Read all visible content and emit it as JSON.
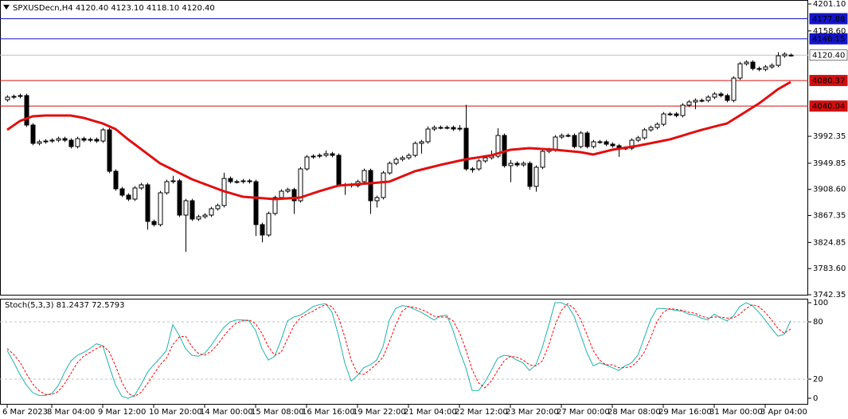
{
  "chart_data": [
    {
      "type": "candlestick",
      "title": "SPXUSDecn,H4  4120.40 4123.10 4118.10 4120.40",
      "categories": [
        "6 Mar 2023",
        null,
        null,
        null,
        null,
        null,
        null,
        "8 Mar 04:00",
        null,
        null,
        null,
        null,
        null,
        null,
        null,
        "9 Mar 12:00",
        null,
        null,
        null,
        null,
        null,
        null,
        null,
        "10 Mar 20:00",
        null,
        null,
        null,
        null,
        null,
        null,
        null,
        "14 Mar 00:00",
        null,
        null,
        null,
        null,
        null,
        null,
        null,
        "15 Mar 08:00",
        null,
        null,
        null,
        null,
        null,
        null,
        null,
        "16 Mar 16:00",
        null,
        null,
        null,
        null,
        null,
        null,
        null,
        "19 Mar 22:00",
        null,
        null,
        null,
        null,
        null,
        null,
        null,
        "21 Mar 04:00",
        null,
        null,
        null,
        null,
        null,
        null,
        null,
        "22 Mar 12:00",
        null,
        null,
        null,
        null,
        null,
        null,
        null,
        "23 Mar 20:00",
        null,
        null,
        null,
        null,
        null,
        null,
        null,
        "27 Mar 00:00",
        null,
        null,
        null,
        null,
        null,
        null,
        null,
        "28 Mar 08:00",
        null,
        null,
        null,
        null,
        null,
        null,
        null,
        "29 Mar 16:00",
        null,
        null,
        null,
        null,
        null,
        null,
        null,
        "31 Mar 00:00",
        null,
        null,
        null,
        null,
        null,
        null,
        null,
        "3 Apr 04:00",
        null,
        null,
        null,
        null
      ],
      "open": [
        4050.0,
        4054.1,
        4055.3,
        4056.6,
        4010.1,
        3981.2,
        3983.7,
        3984.9,
        3986.2,
        3988.7,
        3986.2,
        3976.1,
        3988.7,
        3986.2,
        3987.4,
        3984.9,
        4002.5,
        3937.2,
        3909.5,
        3899.5,
        3893.2,
        3910.8,
        3915.8,
        3858.0,
        3853.0,
        3903.2,
        3920.8,
        3922.1,
        3868.0,
        3890.7,
        3861.8,
        3865.5,
        3868.0,
        3878.1,
        3883.1,
        3925.8,
        3920.8,
        3920.8,
        3922.1,
        3920.8,
        3853.0,
        3836.6,
        3870.6,
        3895.7,
        3905.7,
        3908.3,
        3890.7,
        3940.9,
        3959.8,
        3961.0,
        3962.3,
        3964.8,
        3962.3,
        3915.8,
        3915.8,
        3914.5,
        3920.8,
        3938.4,
        3890.7,
        3895.7,
        3934.6,
        3949.7,
        3956.0,
        3958.5,
        3962.3,
        3981.2,
        3983.7,
        4003.8,
        4006.3,
        4006.3,
        4006.3,
        4003.8,
        4005.0,
        3940.9,
        3940.9,
        3953.5,
        3958.5,
        3961.0,
        3993.7,
        3946.0,
        3949.7,
        3947.2,
        3949.7,
        3913.3,
        3943.5,
        3968.6,
        3971.2,
        3991.2,
        3993.7,
        3993.7,
        3976.1,
        3997.5,
        3976.1,
        3983.7,
        3983.7,
        3979.9,
        3977.4,
        3973.6,
        3973.6,
        3986.2,
        3989.9,
        4002.5,
        4006.3,
        4011.3,
        4027.6,
        4027.6,
        4025.1,
        4041.5,
        4046.5,
        4049.0,
        4049.0,
        4054.1,
        4059.1,
        4056.6,
        4049.0,
        4084.2,
        4106.8,
        4109.4,
        4099.3,
        4098.0,
        4101.8,
        4104.3,
        4119.4,
        4120.4
      ],
      "high": [
        4057.1,
        4058.3,
        4059.6,
        4059.6,
        4013.1,
        3986.7,
        3987.9,
        3989.2,
        3991.7,
        3991.7,
        3989.2,
        3991.7,
        3991.7,
        3990.4,
        3990.4,
        4005.5,
        4005.5,
        3940.2,
        3912.5,
        3902.5,
        3913.8,
        3918.8,
        3918.8,
        3861.0,
        3906.2,
        3923.8,
        3930.1,
        3925.1,
        3893.7,
        3893.7,
        3868.5,
        3871.0,
        3881.1,
        3886.1,
        3935.0,
        3928.8,
        3923.8,
        3925.1,
        3925.1,
        3923.8,
        3856.0,
        3873.6,
        3898.7,
        3908.7,
        3911.3,
        3911.3,
        3943.9,
        3962.8,
        3964.0,
        3965.3,
        3970.0,
        3967.8,
        3965.3,
        3918.8,
        3918.8,
        3923.8,
        3941.4,
        3941.4,
        3898.7,
        3937.6,
        3952.7,
        3959.0,
        3961.5,
        3965.3,
        3984.2,
        3986.7,
        4008.0,
        4009.3,
        4009.3,
        4009.3,
        4009.3,
        4010.0,
        4042.0,
        3943.9,
        3956.5,
        3961.5,
        3970.0,
        4005.0,
        3996.7,
        3955.0,
        3952.7,
        3952.7,
        3952.7,
        3946.5,
        3971.6,
        3974.2,
        3994.2,
        3996.7,
        3996.7,
        3996.7,
        4000.5,
        4000.5,
        3986.7,
        3986.7,
        3986.7,
        3982.9,
        3980.4,
        3976.6,
        3989.2,
        3992.9,
        4005.5,
        4009.3,
        4014.3,
        4030.6,
        4030.6,
        4030.6,
        4044.5,
        4049.5,
        4052.0,
        4052.0,
        4057.1,
        4062.1,
        4062.1,
        4059.6,
        4087.2,
        4109.8,
        4112.4,
        4112.4,
        4102.3,
        4104.8,
        4107.3,
        4125.0,
        4124.9,
        4123.1
      ],
      "low": [
        4047.0,
        4051.1,
        4052.3,
        4007.1,
        3978.2,
        3978.2,
        3980.7,
        3981.9,
        3983.2,
        3983.2,
        3973.1,
        3973.1,
        3983.2,
        3983.2,
        3981.9,
        3981.9,
        3934.2,
        3906.5,
        3896.5,
        3890.2,
        3890.2,
        3907.8,
        3845.0,
        3850.0,
        3850.0,
        3900.2,
        3917.8,
        3865.0,
        3810.0,
        3858.8,
        3858.8,
        3862.5,
        3865.0,
        3875.1,
        3880.1,
        3917.8,
        3917.8,
        3917.8,
        3917.8,
        3835.0,
        3825.0,
        3833.6,
        3867.6,
        3892.7,
        3902.7,
        3870.0,
        3887.7,
        3937.9,
        3956.8,
        3958.0,
        3959.3,
        3959.3,
        3912.8,
        3900.0,
        3911.5,
        3911.5,
        3917.8,
        3870.0,
        3880.0,
        3892.7,
        3931.6,
        3946.7,
        3953.0,
        3955.5,
        3959.3,
        3965.0,
        3980.7,
        4000.8,
        4003.3,
        4003.3,
        4000.8,
        4000.8,
        3937.9,
        3935.0,
        3937.9,
        3950.5,
        3955.5,
        3958.0,
        3943.0,
        3920.0,
        3944.2,
        3944.2,
        3908.0,
        3905.0,
        3940.5,
        3965.6,
        3968.2,
        3988.2,
        3990.7,
        3973.1,
        3973.1,
        3973.1,
        3973.1,
        3980.7,
        3976.9,
        3974.4,
        3960.0,
        3970.6,
        3970.6,
        3983.2,
        3986.9,
        3999.5,
        4003.3,
        4008.3,
        4024.6,
        4022.1,
        4022.1,
        4038.5,
        4035.0,
        4046.0,
        4046.0,
        4051.1,
        4053.6,
        4046.0,
        4046.0,
        4081.2,
        4103.8,
        4096.3,
        4095.0,
        4095.0,
        4098.8,
        4101.3,
        4116.4,
        4118.1
      ],
      "close": [
        4054.1,
        4055.3,
        4056.6,
        4010.1,
        3981.2,
        3983.7,
        3984.9,
        3986.2,
        3988.7,
        3986.2,
        3976.1,
        3988.7,
        3986.2,
        3987.4,
        3984.9,
        4002.5,
        3937.2,
        3909.5,
        3899.5,
        3893.2,
        3910.8,
        3915.8,
        3858.0,
        3853.0,
        3903.2,
        3920.8,
        3922.1,
        3868.0,
        3890.7,
        3861.8,
        3865.5,
        3868.0,
        3878.1,
        3883.1,
        3925.8,
        3920.8,
        3920.8,
        3922.1,
        3920.8,
        3853.0,
        3836.6,
        3870.6,
        3895.7,
        3905.7,
        3908.3,
        3890.7,
        3940.9,
        3959.8,
        3961.0,
        3962.3,
        3964.8,
        3962.3,
        3915.8,
        3915.8,
        3914.5,
        3920.8,
        3938.4,
        3890.7,
        3895.7,
        3934.6,
        3949.7,
        3956.0,
        3958.5,
        3962.3,
        3981.2,
        3983.7,
        4003.8,
        4006.3,
        4006.3,
        4006.3,
        4003.8,
        4005.0,
        3940.9,
        3940.9,
        3953.5,
        3958.5,
        3961.0,
        3993.7,
        3946.0,
        3949.7,
        3947.2,
        3949.7,
        3913.3,
        3943.5,
        3968.6,
        3971.2,
        3991.2,
        3993.7,
        3993.7,
        3976.1,
        3997.5,
        3976.1,
        3983.7,
        3983.7,
        3979.9,
        3977.4,
        3973.6,
        3973.6,
        3986.2,
        3989.9,
        4002.5,
        4006.3,
        4011.3,
        4027.6,
        4027.6,
        4025.1,
        4041.5,
        4046.5,
        4049.0,
        4049.0,
        4054.1,
        4059.1,
        4056.6,
        4049.0,
        4084.2,
        4106.8,
        4109.4,
        4099.3,
        4098.0,
        4101.8,
        4104.3,
        4119.4,
        4121.9,
        4120.4
      ],
      "up_color": "#ffffff",
      "down_color": "#000000",
      "ma": {
        "color": "#e01010",
        "values": [
          4002.5,
          4009.5,
          4016.4,
          4020.2,
          4023.9,
          4024.5,
          4025.1,
          4025.1,
          4025.1,
          4025.1,
          4025.1,
          4023.3,
          4021.4,
          4018.5,
          4015.5,
          4012.6,
          4008.2,
          4003.8,
          3995.6,
          3987.4,
          3979.9,
          3972.3,
          3964.8,
          3957.2,
          3949.7,
          3944.7,
          3939.7,
          3934.6,
          3929.6,
          3924.6,
          3920.8,
          3917.0,
          3913.3,
          3909.5,
          3905.7,
          3902.8,
          3899.9,
          3897.0,
          3896.2,
          3895.5,
          3894.7,
          3894.0,
          3893.2,
          3893.8,
          3894.5,
          3895.1,
          3895.7,
          3899.0,
          3902.4,
          3905.7,
          3908.6,
          3911.6,
          3914.5,
          3915.3,
          3916.0,
          3916.8,
          3917.5,
          3918.3,
          3919.1,
          3920.0,
          3920.8,
          3924.9,
          3929.0,
          3933.1,
          3937.2,
          3939.7,
          3942.2,
          3944.7,
          3947.2,
          3949.4,
          3951.6,
          3953.8,
          3956.0,
          3957.6,
          3959.1,
          3960.7,
          3962.3,
          3965.2,
          3968.2,
          3971.1,
          3971.9,
          3972.8,
          3973.6,
          3973.0,
          3972.4,
          3971.7,
          3971.1,
          3970.2,
          3969.2,
          3968.3,
          3967.3,
          3965.5,
          3963.6,
          3966.1,
          3968.6,
          3971.1,
          3972.7,
          3974.3,
          3975.8,
          3977.4,
          3979.4,
          3981.4,
          3983.4,
          3985.4,
          3987.4,
          3990.4,
          3993.4,
          3996.5,
          3999.5,
          4002.5,
          4005.0,
          4007.6,
          4010.1,
          4012.6,
          4018.9,
          4025.1,
          4031.4,
          4037.7,
          4044.0,
          4051.5,
          4059.0,
          4066.6,
          4072.3,
          4078.0
        ]
      },
      "levels": [
        {
          "value": 4177.88,
          "color": "#1414c8"
        },
        {
          "value": 4146.15,
          "color": "#1414c8"
        },
        {
          "value": 4120.4,
          "label": "4120.40",
          "color": "#c0c0c0"
        },
        {
          "value": 4080.37,
          "color": "#d01010"
        },
        {
          "value": 4040.04,
          "color": "#d01010"
        }
      ],
      "ylim": [
        3741.1,
        4207.4
      ],
      "yticks": [
        {
          "value": 4201.1,
          "label": "4201.10"
        },
        {
          "value": 4158.6,
          "label": "4158.60"
        },
        3992.35,
        3949.85,
        {
          "value": 3908.6,
          "label": "3908.60"
        },
        3867.35,
        3824.85,
        {
          "value": 3783.6,
          "label": "3783.60"
        },
        3742.35
      ]
    },
    {
      "type": "line",
      "title": "Stoch(5,3,3) 81.2437 72.5793",
      "series": [
        {
          "color": "#20b2aa",
          "values": [
            50,
            38,
            25,
            14,
            6,
            3,
            3,
            5,
            13,
            27,
            39,
            45,
            48,
            52,
            57,
            55,
            34,
            14,
            2,
            0,
            3,
            14,
            27,
            35,
            42,
            50,
            77,
            66,
            52,
            45,
            44,
            47,
            55,
            65,
            74,
            80,
            82,
            82,
            81,
            71,
            52,
            40,
            44,
            61,
            81,
            85,
            87,
            91,
            96,
            98,
            99,
            90,
            66,
            37,
            18,
            24,
            32,
            35,
            40,
            54,
            82,
            94,
            97,
            96,
            93,
            90,
            86,
            82,
            86,
            87,
            71,
            50,
            32,
            8,
            8,
            17,
            29,
            42,
            45,
            44,
            40,
            37,
            29,
            35,
            53,
            76,
            100,
            100,
            97,
            86,
            67,
            48,
            34,
            37,
            35,
            32,
            29,
            34,
            37,
            45,
            63,
            82,
            94,
            94,
            93,
            92,
            91,
            88,
            87,
            84,
            82,
            88,
            84,
            81,
            86,
            96,
            100,
            97,
            90,
            82,
            73,
            65,
            67,
            81.2437
          ]
        },
        {
          "color": "#ff0000",
          "dashed": true,
          "values": [
            52,
            46,
            38,
            26,
            15,
            8,
            4,
            4,
            7,
            15,
            26,
            37,
            44,
            48,
            52,
            55,
            49,
            34,
            17,
            5,
            2,
            6,
            15,
            25,
            35,
            42,
            56,
            64,
            65,
            54,
            47,
            45,
            49,
            56,
            65,
            73,
            79,
            81,
            82,
            78,
            68,
            54,
            45,
            48,
            62,
            76,
            84,
            88,
            91,
            95,
            98,
            96,
            85,
            64,
            40,
            26,
            25,
            30,
            36,
            43,
            59,
            77,
            91,
            96,
            95,
            93,
            90,
            86,
            85,
            85,
            81,
            69,
            51,
            30,
            16,
            11,
            18,
            29,
            39,
            44,
            43,
            40,
            35,
            34,
            39,
            55,
            76,
            92,
            99,
            94,
            83,
            67,
            50,
            40,
            35,
            35,
            32,
            32,
            33,
            39,
            48,
            63,
            80,
            90,
            94,
            93,
            92,
            90,
            89,
            86,
            84,
            85,
            85,
            84,
            84,
            88,
            94,
            98,
            96,
            90,
            82,
            73,
            68,
            72.5793
          ]
        }
      ],
      "levels": [
        20,
        80
      ],
      "ylim": [
        -6.7,
        104.2
      ],
      "yticks": [
        0,
        20,
        80,
        100
      ]
    }
  ]
}
